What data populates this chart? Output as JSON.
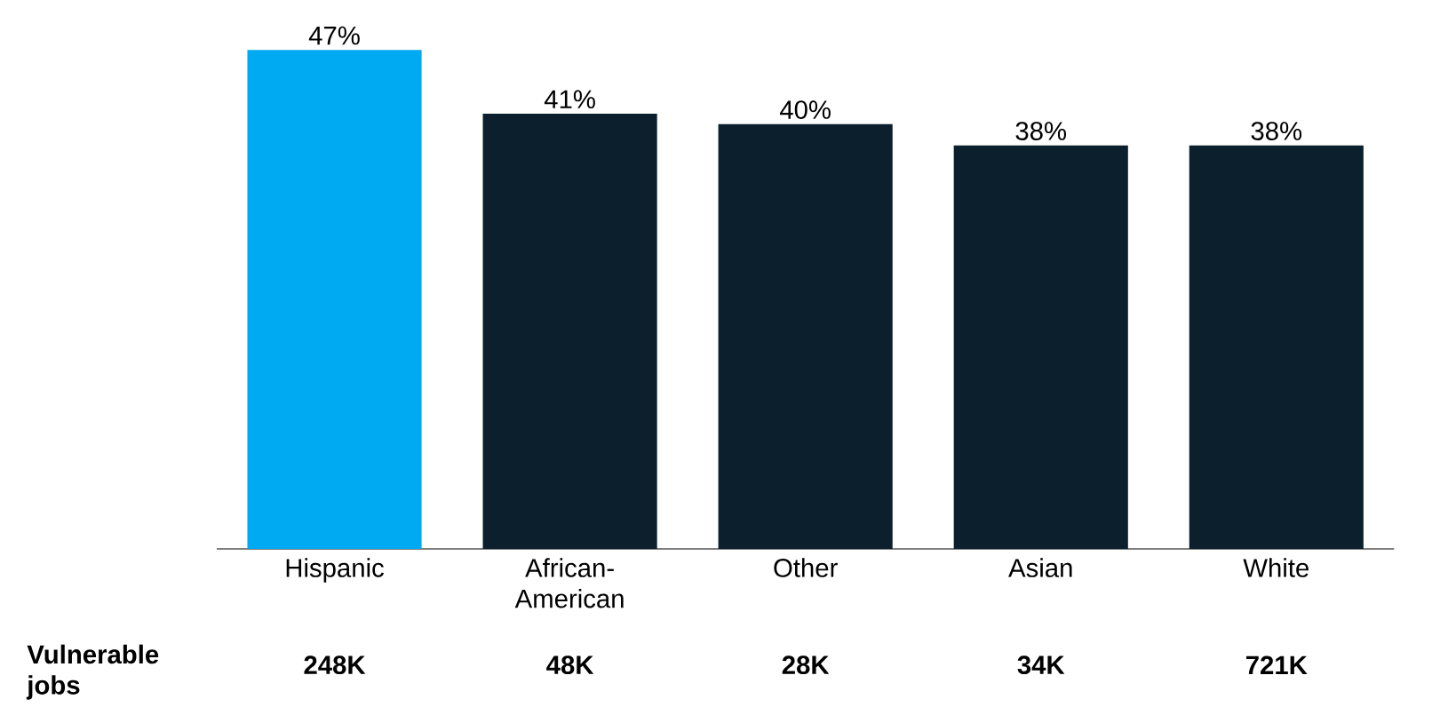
{
  "chart_data": {
    "type": "bar",
    "categories": [
      "Hispanic",
      "African-American",
      "Other",
      "Asian",
      "White"
    ],
    "values": [
      47,
      41,
      40,
      38,
      38
    ],
    "colors": [
      "#00aaf2",
      "#0b1f2d",
      "#0b1f2d",
      "#0b1f2d",
      "#0b1f2d"
    ],
    "value_labels": [
      "47%",
      "41%",
      "40%",
      "38%",
      "38%"
    ],
    "annotations": [
      "Vulnerable jobs",
      "248K",
      "48K",
      "28K",
      "34K",
      "721K"
    ]
  }
}
